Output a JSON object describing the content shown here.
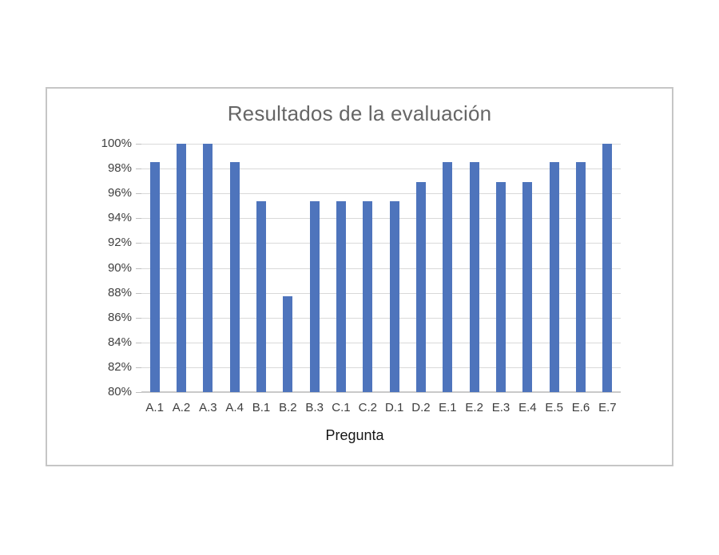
{
  "chart_data": {
    "type": "bar",
    "title": "Resultados de la evaluación",
    "xlabel": "Pregunta",
    "ylabel": "",
    "categories": [
      "A.1",
      "A.2",
      "A.3",
      "A.4",
      "B.1",
      "B.2",
      "B.3",
      "C.1",
      "C.2",
      "D.1",
      "D.2",
      "E.1",
      "E.2",
      "E.3",
      "E.4",
      "E.5",
      "E.6",
      "E.7"
    ],
    "values": [
      98.5,
      100,
      100,
      98.5,
      95.4,
      87.7,
      95.4,
      95.4,
      95.4,
      95.4,
      96.9,
      98.5,
      98.5,
      96.9,
      96.9,
      98.5,
      98.5,
      100
    ],
    "value_unit": "%",
    "ylim": [
      80,
      100
    ],
    "ytick_step": 2,
    "ytick_labels": [
      "80%",
      "82%",
      "84%",
      "86%",
      "88%",
      "90%",
      "92%",
      "94%",
      "96%",
      "98%",
      "100%"
    ],
    "grid": true,
    "legend": "none",
    "colors": {
      "bar": "#4e74bc",
      "gridline": "#d9d9d9",
      "axis_line": "#c9c9c9",
      "tick": "#bfbfbf",
      "tick_label": "#404040",
      "category_label": "#3d3d3d",
      "title": "#666666",
      "axis_title": "#161616",
      "frame_border": "#c6c6c6",
      "background": "#ffffff"
    }
  }
}
